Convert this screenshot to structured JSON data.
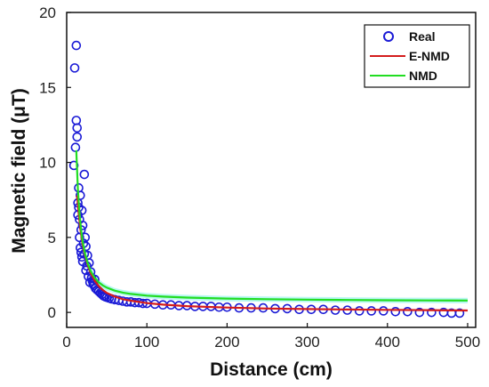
{
  "chart_data": {
    "type": "scatter",
    "xlabel": "Distance (cm)",
    "ylabel": "Magnetic field (μT)",
    "xlim": [
      0,
      510
    ],
    "ylim": [
      -1,
      20
    ],
    "xticks": [
      0,
      100,
      200,
      300,
      400,
      500
    ],
    "yticks": [
      0,
      5,
      10,
      15,
      20
    ],
    "grid": false,
    "legend_position": "top-right",
    "series": [
      {
        "name": "Real",
        "kind": "scatter",
        "marker": "open-circle",
        "color": "#1a1ad6",
        "x": [
          9,
          10,
          11,
          12,
          12,
          13,
          13,
          14,
          14,
          15,
          15,
          16,
          16,
          17,
          17,
          18,
          18,
          19,
          19,
          20,
          20,
          21,
          22,
          22,
          23,
          24,
          24,
          25,
          26,
          27,
          28,
          29,
          30,
          31,
          32,
          33,
          34,
          35,
          36,
          38,
          40,
          42,
          44,
          46,
          48,
          50,
          53,
          56,
          60,
          65,
          70,
          75,
          80,
          85,
          90,
          95,
          100,
          110,
          120,
          130,
          140,
          150,
          160,
          170,
          180,
          190,
          200,
          215,
          230,
          245,
          260,
          275,
          290,
          305,
          320,
          335,
          350,
          365,
          380,
          395,
          410,
          425,
          440,
          455,
          470,
          480,
          490
        ],
        "y": [
          9.8,
          16.3,
          11.0,
          17.8,
          12.8,
          12.3,
          11.7,
          7.3,
          6.5,
          8.3,
          7.0,
          6.2,
          5.0,
          7.8,
          4.3,
          5.5,
          4.0,
          6.8,
          3.7,
          5.8,
          3.4,
          4.6,
          9.2,
          3.9,
          5.0,
          2.8,
          4.4,
          3.1,
          3.8,
          2.4,
          3.3,
          2.0,
          2.7,
          2.3,
          2.1,
          1.9,
          1.8,
          2.2,
          1.6,
          1.5,
          1.4,
          1.3,
          1.2,
          1.1,
          1.05,
          1.0,
          0.95,
          0.9,
          0.85,
          0.8,
          0.75,
          0.7,
          0.7,
          0.65,
          0.65,
          0.6,
          0.6,
          0.55,
          0.5,
          0.5,
          0.45,
          0.45,
          0.4,
          0.4,
          0.4,
          0.35,
          0.35,
          0.3,
          0.3,
          0.3,
          0.25,
          0.25,
          0.2,
          0.2,
          0.2,
          0.15,
          0.15,
          0.1,
          0.1,
          0.1,
          0.05,
          0.05,
          0.0,
          0.0,
          0.0,
          -0.05,
          -0.05
        ]
      },
      {
        "name": "E-NMD",
        "kind": "line",
        "color": "#d41c1c",
        "x": [
          13,
          15,
          17,
          20,
          23,
          26,
          30,
          35,
          40,
          45,
          50,
          60,
          70,
          80,
          100,
          120,
          150,
          200,
          250,
          300,
          350,
          400,
          450,
          500
        ],
        "y": [
          7.8,
          6.6,
          5.6,
          4.5,
          3.8,
          3.2,
          2.6,
          2.1,
          1.75,
          1.5,
          1.3,
          1.05,
          0.88,
          0.78,
          0.62,
          0.52,
          0.42,
          0.32,
          0.26,
          0.22,
          0.19,
          0.17,
          0.15,
          0.13
        ]
      },
      {
        "name": "NMD",
        "kind": "line",
        "color": "#22dd22",
        "x": [
          12,
          14,
          16,
          18,
          20,
          23,
          26,
          30,
          35,
          40,
          45,
          50,
          60,
          70,
          80,
          100,
          120,
          150,
          200,
          250,
          300,
          350,
          400,
          450,
          500
        ],
        "y": [
          10.8,
          8.2,
          6.6,
          5.5,
          4.7,
          3.9,
          3.3,
          2.75,
          2.3,
          2.0,
          1.8,
          1.65,
          1.45,
          1.32,
          1.23,
          1.12,
          1.05,
          0.99,
          0.92,
          0.88,
          0.85,
          0.83,
          0.81,
          0.8,
          0.79
        ]
      }
    ]
  }
}
